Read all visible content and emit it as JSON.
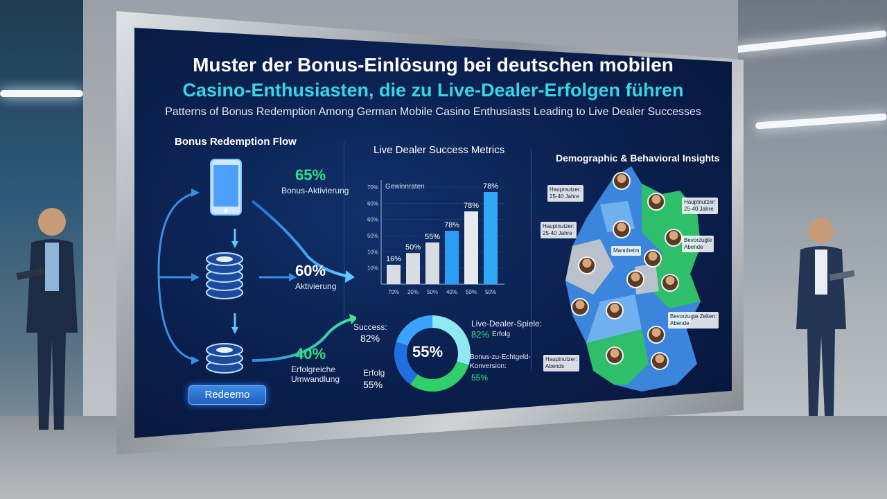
{
  "infographic": {
    "title_de_line1": "Muster der Bonus-Einlösung bei deutschen mobilen",
    "title_de_line2": "Casino-Enthusiasten, die zu Live-Dealer-Erfolgen führen",
    "subtitle_en": "Patterns of Bonus Redemption Among German Mobile Casino Enthusiasts Leading to Live Dealer Successes"
  },
  "flow": {
    "heading": "Bonus Redemption Flow",
    "step1_pct": "65%",
    "step1_label": "Bonus-Aktivierung",
    "step2_pct": "60%",
    "step2_label": "Aktivierung",
    "step3_pct": "40%",
    "step3_label_line1": "Erfolgreiche",
    "step3_label_line2": "Umwandlung",
    "redeem_button": "Redeemo",
    "icons": [
      "phone-icon",
      "chip-stack-icon",
      "chip-stack-icon"
    ],
    "colors": {
      "accent_green": "#2fe08a",
      "accent_blue": "#3aa2ff"
    }
  },
  "metrics": {
    "heading": "Live Dealer Success Metrics",
    "legend_label": "Gewinnraten"
  },
  "chart_data": [
    {
      "type": "bar",
      "title": "Live Dealer Success Metrics",
      "legend": "Gewinnraten",
      "y_tick_labels": [
        "70%",
        "60%",
        "60%",
        "50%",
        "10%",
        "10%"
      ],
      "categories": [
        "70%",
        "20%",
        "50%",
        "40%",
        "50%",
        "50%"
      ],
      "value_labels": [
        "16%",
        "50%",
        "55%",
        "78%",
        "78%",
        "78%"
      ],
      "values": [
        16,
        50,
        55,
        78,
        78,
        78
      ],
      "bar_heights_fraction_of_axis": [
        0.2,
        0.32,
        0.43,
        0.55,
        0.75,
        0.95
      ],
      "colors": [
        "#d8dde4",
        "#d8dde4",
        "#d8dde4",
        "#2a9df4",
        "#e7ebf0",
        "#2fa8f6"
      ],
      "grid": true
    },
    {
      "type": "pie",
      "center_label": "55%",
      "slices": [
        {
          "name": "Live-Dealer-Spiele",
          "value": 82
        },
        {
          "name": "Success",
          "value": 82
        },
        {
          "name": "Bonus-zu-Echtgeld-Konversion",
          "value": 55
        },
        {
          "name": "Erfolg",
          "value": 55
        }
      ],
      "colors": [
        "#8fe9f0",
        "#2fcf6c",
        "#1f6fe0",
        "#3aa2ff"
      ]
    }
  ],
  "donut": {
    "center": "55%",
    "left_top_label": "Success:",
    "left_top_value": "82%",
    "left_bottom_label": "Erfolg",
    "left_bottom_value": "55%",
    "right_top_label": "Live-Dealer-Spiele:",
    "right_top_value": "82%",
    "right_top_suffix": "Erfolg",
    "right_bottom_label_line1": "Bonus-zu-Echtgeld-",
    "right_bottom_label_line2": "Konversion:",
    "right_bottom_value": "55%"
  },
  "demographics": {
    "heading": "Demographic & Behavioral Insights",
    "label_a_line1": "Hauptnutzer:",
    "label_a_line2": "25-40 Jahre",
    "label_b_line1": "Hauptnutzer:",
    "label_b_line2": "25-40 Jahre",
    "label_c_line1": "Hauptnutzer:",
    "label_c_line2": "25-40 Jahre",
    "label_d_line1": "Bevorzugte",
    "label_d_line2": "Abende",
    "label_e_line1": "Bevorzugte Zeiten:",
    "label_e_line2": "Abende",
    "label_f_line1": "Hauptnutzer:",
    "label_f_line2": "Abends",
    "label_g": "Mannheim",
    "colors": {
      "blue": "#3b86dc",
      "green": "#2fbf6a",
      "grey": "#b9c2cc",
      "light_blue": "#6fb0ee"
    }
  }
}
